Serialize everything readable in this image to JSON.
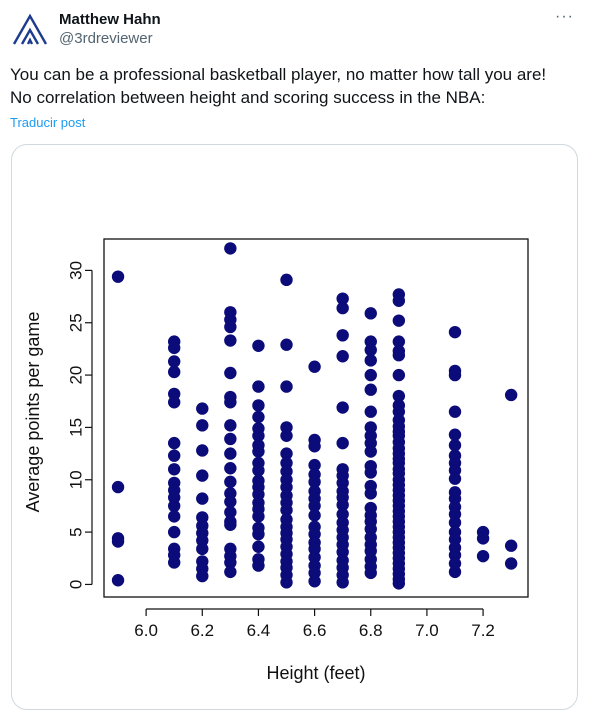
{
  "author": {
    "display_name": "Matthew Hahn",
    "handle": "@3rdreviewer",
    "avatar_icon": "mountain-chevron-logo-icon",
    "accent_color": "#1d3c8f"
  },
  "more_menu": {
    "label": "···",
    "icon": "more-horizontal-icon"
  },
  "tweet": {
    "text_line1": "You can be a professional basketball player, no matter how tall you are!",
    "text_line2": "No correlation between height and scoring success in the NBA:",
    "translate_label": "Traducir post"
  },
  "chart_data": {
    "type": "scatter",
    "xlabel": "Height (feet)",
    "ylabel": "Average points per game",
    "xlim": [
      5.85,
      7.36
    ],
    "ylim": [
      -1.2,
      33.0
    ],
    "x_ticks": [
      6.0,
      6.2,
      6.4,
      6.6,
      6.8,
      7.0,
      7.2
    ],
    "x_tick_labels": [
      "6.0",
      "6.2",
      "6.4",
      "6.6",
      "6.8",
      "7.0",
      "7.2"
    ],
    "y_ticks": [
      0,
      5,
      10,
      15,
      20,
      25,
      30
    ],
    "y_tick_labels": [
      "0",
      "5",
      "10",
      "15",
      "20",
      "25",
      "30"
    ],
    "marker_color": "#0b0b7a",
    "grid": false,
    "columns": [
      {
        "x": 5.9,
        "y": [
          29.4,
          9.3,
          4.4,
          4.1,
          0.4
        ]
      },
      {
        "x": 6.1,
        "y": [
          23.2,
          22.6,
          21.3,
          20.3,
          18.2,
          17.4,
          13.5,
          12.3,
          11.0,
          9.7,
          9.0,
          8.3,
          7.5,
          6.5,
          5.0,
          3.4,
          2.8,
          2.1
        ]
      },
      {
        "x": 6.2,
        "y": [
          16.8,
          15.2,
          12.8,
          10.4,
          8.2,
          6.4,
          5.6,
          4.9,
          4.2,
          3.4,
          2.2,
          1.5,
          0.8
        ]
      },
      {
        "x": 6.3,
        "y": [
          32.1,
          26.0,
          25.3,
          24.6,
          23.3,
          20.2,
          17.9,
          17.4,
          15.2,
          13.9,
          12.5,
          11.1,
          9.8,
          8.7,
          7.9,
          6.9,
          6.0,
          5.7,
          3.4,
          2.7,
          2.1,
          1.2
        ]
      },
      {
        "x": 6.4,
        "y": [
          22.8,
          18.9,
          17.1,
          16.0,
          14.9,
          14.2,
          13.3,
          12.7,
          11.6,
          10.9,
          9.9,
          9.3,
          8.6,
          7.8,
          7.2,
          6.5,
          5.4,
          4.8,
          3.6,
          2.4,
          1.8
        ]
      },
      {
        "x": 6.5,
        "y": [
          29.1,
          22.9,
          18.9,
          15.0,
          14.2,
          12.5,
          11.6,
          10.8,
          10.0,
          9.3,
          8.5,
          7.8,
          7.1,
          6.2,
          5.5,
          4.9,
          4.3,
          3.6,
          2.9,
          2.2,
          1.6,
          0.9,
          0.2
        ]
      },
      {
        "x": 6.6,
        "y": [
          20.8,
          13.8,
          13.2,
          11.4,
          10.5,
          9.8,
          8.9,
          8.2,
          7.5,
          6.6,
          5.5,
          4.8,
          4.0,
          3.4,
          2.6,
          1.8,
          1.1,
          0.3
        ]
      },
      {
        "x": 6.7,
        "y": [
          27.3,
          26.4,
          23.8,
          21.8,
          16.9,
          13.5,
          11.0,
          10.4,
          9.7,
          8.9,
          8.3,
          7.6,
          6.7,
          5.9,
          5.2,
          4.5,
          3.8,
          3.1,
          2.3,
          1.6,
          0.9,
          0.2
        ]
      },
      {
        "x": 6.8,
        "y": [
          25.9,
          23.2,
          22.4,
          21.4,
          20.0,
          18.6,
          16.5,
          15.0,
          14.2,
          13.5,
          12.7,
          11.3,
          10.7,
          9.4,
          8.7,
          7.3,
          6.6,
          6.0,
          5.3,
          4.5,
          3.8,
          3.2,
          2.4,
          1.7,
          1.1
        ]
      },
      {
        "x": 6.9,
        "y": [
          27.7,
          27.1,
          25.2,
          23.2,
          22.3,
          21.9,
          20.0,
          18.0,
          17.1,
          16.5,
          15.7,
          15.1,
          14.6,
          14.2,
          13.6,
          13.0,
          12.5,
          12.0,
          11.6,
          11.0,
          10.6,
          10.0,
          9.5,
          9.0,
          8.5,
          8.0,
          7.5,
          7.0,
          6.5,
          6.0,
          5.5,
          5.0,
          4.5,
          4.0,
          3.5,
          3.0,
          2.5,
          2.0,
          1.5,
          1.0,
          0.5,
          0.1
        ]
      },
      {
        "x": 7.1,
        "y": [
          24.1,
          20.4,
          20.0,
          16.5,
          14.3,
          13.3,
          12.3,
          11.6,
          10.9,
          10.1,
          8.8,
          8.2,
          7.4,
          6.7,
          5.9,
          5.0,
          4.3,
          3.5,
          2.8,
          2.0,
          1.2
        ]
      },
      {
        "x": 7.2,
        "y": [
          5.0,
          4.4,
          2.7
        ]
      },
      {
        "x": 7.3,
        "y": [
          18.1,
          3.7,
          2.0
        ]
      }
    ]
  }
}
